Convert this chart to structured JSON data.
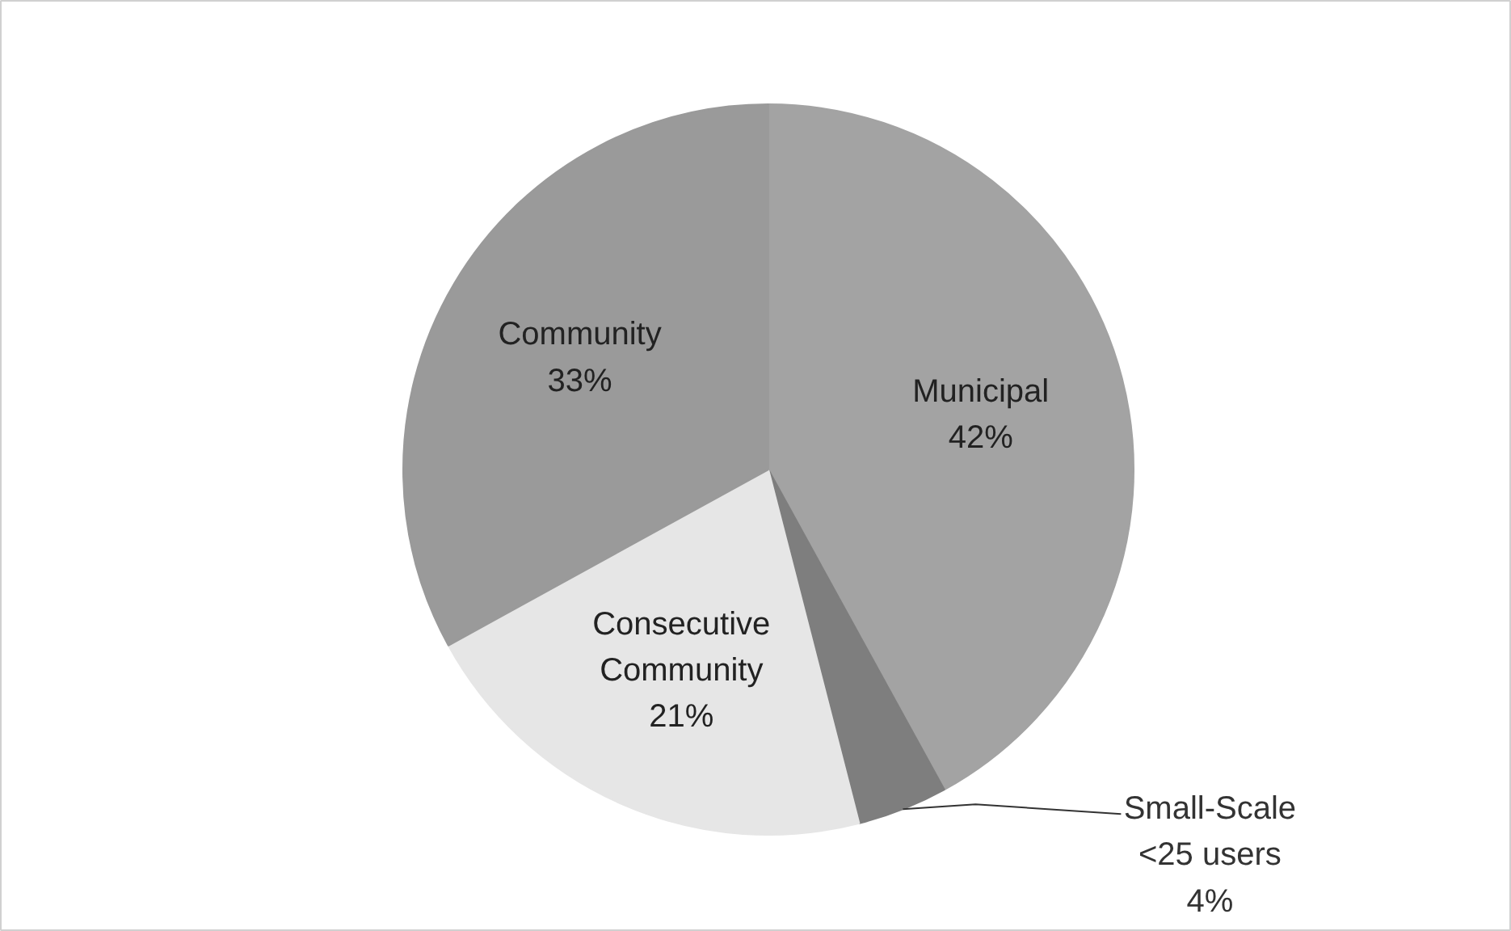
{
  "chart_data": {
    "type": "pie",
    "categories": [
      "Municipal",
      "Small-Scale\n<25 users",
      "Consecutive\nCommunity",
      "Community"
    ],
    "values": [
      42,
      4,
      21,
      33
    ],
    "value_labels": [
      "42%",
      "4%",
      "21%",
      "33%"
    ],
    "colors": [
      "#a3a3a3",
      "#7e7e7e",
      "#e6e6e6",
      "#9a9a9a"
    ]
  }
}
